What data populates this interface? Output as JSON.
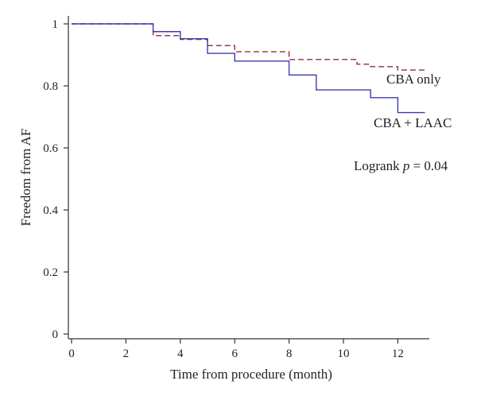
{
  "chart_data": {
    "type": "line",
    "title": "",
    "xlabel": "Time from procedure (month)",
    "ylabel": "Freedom from AF",
    "xlim": [
      0,
      13.5
    ],
    "ylim": [
      0,
      1.02
    ],
    "x_ticks": [
      0,
      2,
      4,
      6,
      8,
      10,
      12
    ],
    "y_ticks": [
      0,
      0.2,
      0.4,
      0.6,
      0.8,
      1
    ],
    "y_tick_labels": [
      "0",
      "0.2",
      "0.4",
      "0.6",
      "0.8",
      "1"
    ],
    "grid": false,
    "step": true,
    "series": [
      {
        "name": "CBA only",
        "color": "#8b2f3f",
        "dash": "dashed",
        "points": [
          [
            0,
            1.0
          ],
          [
            3,
            0.962
          ],
          [
            4,
            0.95
          ],
          [
            5,
            0.93
          ],
          [
            6,
            0.91
          ],
          [
            8,
            0.885
          ],
          [
            10.5,
            0.87
          ],
          [
            11,
            0.862
          ],
          [
            12,
            0.851
          ],
          [
            13,
            0.851
          ]
        ]
      },
      {
        "name": "CBA + LAAC",
        "color": "#3b3bb0",
        "dash": "solid",
        "points": [
          [
            0,
            1.0
          ],
          [
            3,
            0.975
          ],
          [
            4,
            0.952
          ],
          [
            5,
            0.905
          ],
          [
            6,
            0.88
          ],
          [
            8,
            0.835
          ],
          [
            9,
            0.787
          ],
          [
            11,
            0.762
          ],
          [
            12,
            0.714
          ],
          [
            13,
            0.714
          ]
        ]
      }
    ],
    "annotations": {
      "series1_label": "CBA only",
      "series2_label": "CBA + LAAC",
      "logrank_prefix": "Logrank ",
      "logrank_p": "p",
      "logrank_suffix": " = 0.04"
    }
  }
}
